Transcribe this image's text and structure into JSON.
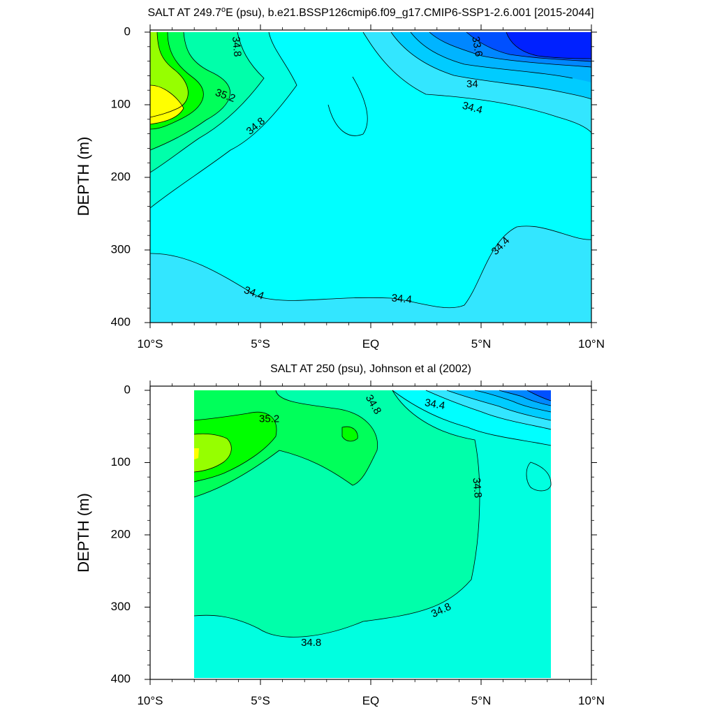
{
  "chart_data": [
    {
      "type": "contour",
      "title": "SALT AT 249.7°E (psu), b.e21.BSSP126cmip6.f09_g17.CMIP6-SSP1-2.6.001 [2015-2044]",
      "title_parts": {
        "pre": "SALT AT 249.7",
        "sup": "o",
        "post": "E (psu), b.e21.BSSP126cmip6.f09_g17.CMIP6-SSP1-2.6.001 [2015-2044]"
      },
      "xlabel": "",
      "ylabel": "DEPTH (m)",
      "xlim": [
        -10,
        10
      ],
      "ylim": [
        400,
        0
      ],
      "x_ticks": [
        {
          "value": -10,
          "label": "10°S"
        },
        {
          "value": -5,
          "label": "5°S"
        },
        {
          "value": 0,
          "label": "EQ"
        },
        {
          "value": 5,
          "label": "5°N"
        },
        {
          "value": 10,
          "label": "10°N"
        }
      ],
      "y_ticks": [
        0,
        100,
        200,
        300,
        400
      ],
      "data_extent_x": [
        -10,
        10
      ],
      "contour_labels": [
        {
          "text": "34.8",
          "lon": -6.1,
          "depth": 20,
          "rot": 85
        },
        {
          "text": "33.6",
          "lon": 4.8,
          "depth": 20,
          "rot": 80
        },
        {
          "text": "35.2",
          "lon": -6.6,
          "depth": 88,
          "rot": 20
        },
        {
          "text": "34",
          "lon": 4.6,
          "depth": 72,
          "rot": 0
        },
        {
          "text": "34.4",
          "lon": 4.6,
          "depth": 105,
          "rot": 15
        },
        {
          "text": "34.8",
          "lon": -5.2,
          "depth": 130,
          "rot": -40
        },
        {
          "text": "34.4",
          "lon": 5.9,
          "depth": 295,
          "rot": -45
        },
        {
          "text": "34.4",
          "lon": -5.3,
          "depth": 360,
          "rot": 20
        },
        {
          "text": "34.4",
          "lon": 1.4,
          "depth": 368,
          "rot": 5
        }
      ]
    },
    {
      "type": "contour",
      "title": "SALT AT 250 (psu), Johnson et al (2002)",
      "title_parts": {
        "pre": "SALT AT 250 (psu), Johnson et al (2002)",
        "sup": "",
        "post": ""
      },
      "xlabel": "",
      "ylabel": "DEPTH (m)",
      "xlim": [
        -10,
        10
      ],
      "ylim": [
        400,
        0
      ],
      "x_ticks": [
        {
          "value": -10,
          "label": "10°S"
        },
        {
          "value": -5,
          "label": "5°S"
        },
        {
          "value": 0,
          "label": "EQ"
        },
        {
          "value": 5,
          "label": "5°N"
        },
        {
          "value": 10,
          "label": "10°N"
        }
      ],
      "y_ticks": [
        0,
        100,
        200,
        300,
        400
      ],
      "data_extent_x": [
        -8,
        8.2
      ],
      "contour_labels": [
        {
          "text": "35.2",
          "lon": -4.6,
          "depth": 40,
          "rot": 0
        },
        {
          "text": "34.8",
          "lon": 0.1,
          "depth": 20,
          "rot": 60
        },
        {
          "text": "34.4",
          "lon": 2.9,
          "depth": 20,
          "rot": 10
        },
        {
          "text": "34.8",
          "lon": 4.8,
          "depth": 135,
          "rot": 85
        },
        {
          "text": "34.8",
          "lon": 3.2,
          "depth": 305,
          "rot": -25
        },
        {
          "text": "34.8",
          "lon": -2.7,
          "depth": 350,
          "rot": 0
        }
      ]
    }
  ],
  "colors": {
    "c_33_2": "#0021ff",
    "c_33_4": "#0050ff",
    "c_33_6": "#0087ff",
    "c_33_8": "#00b4ff",
    "c_34_0": "#00ccff",
    "c_34_2": "#33e6ff",
    "c_34_4": "#00ffff",
    "c_34_6": "#00ffe0",
    "c_34_8": "#00ffaa",
    "c_35_0": "#00ff5a",
    "c_35_2": "#00ff00",
    "c_35_4": "#96ff00",
    "c_35_6": "#ffff00",
    "c_35_8": "#ffd700",
    "line": "#000000"
  }
}
